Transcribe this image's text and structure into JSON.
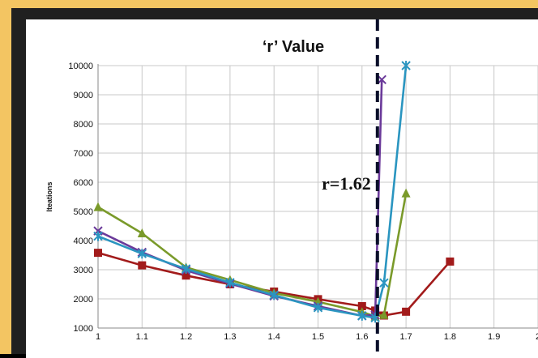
{
  "chart_data": {
    "type": "line",
    "title": "‘r’ Value",
    "xlabel": "",
    "ylabel": "Iteations",
    "xlim": [
      1,
      2
    ],
    "ylim": [
      1000,
      10000
    ],
    "x_ticks": [
      "1",
      "1.1",
      "1.2",
      "1.3",
      "1.4",
      "1.5",
      "1.6",
      "1.7",
      "1.8",
      "1.9",
      "2"
    ],
    "y_ticks": [
      "1000",
      "2000",
      "3000",
      "4000",
      "5000",
      "6000",
      "7000",
      "8000",
      "9000",
      "10000"
    ],
    "grid": true,
    "annotation": {
      "text": "r=1.62",
      "x": 1.635
    },
    "series": [
      {
        "color": "#a21b1b",
        "marker": "square",
        "x": [
          1.0,
          1.1,
          1.2,
          1.3,
          1.4,
          1.5,
          1.6,
          1.63,
          1.65,
          1.7,
          1.8
        ],
        "y": [
          3580,
          3150,
          2800,
          2500,
          2250,
          1990,
          1750,
          1600,
          1430,
          1560,
          3280
        ]
      },
      {
        "color": "#7a9a2a",
        "marker": "triangle",
        "x": [
          1.0,
          1.1,
          1.2,
          1.3,
          1.4,
          1.5,
          1.6,
          1.63,
          1.65,
          1.7
        ],
        "y": [
          5150,
          4250,
          3080,
          2650,
          2200,
          1900,
          1550,
          1400,
          1450,
          5620
        ]
      },
      {
        "color": "#6b3a9a",
        "marker": "x",
        "x": [
          1.0,
          1.1,
          1.2,
          1.3,
          1.4,
          1.5,
          1.6,
          1.63,
          1.645
        ],
        "y": [
          4330,
          3600,
          2980,
          2520,
          2100,
          1750,
          1420,
          1450,
          9520
        ]
      },
      {
        "color": "#2a95c0",
        "marker": "asterisk",
        "x": [
          1.0,
          1.1,
          1.2,
          1.3,
          1.4,
          1.5,
          1.6,
          1.63,
          1.65,
          1.7
        ],
        "y": [
          4150,
          3550,
          3030,
          2560,
          2130,
          1700,
          1420,
          1350,
          2550,
          10000
        ]
      }
    ]
  }
}
